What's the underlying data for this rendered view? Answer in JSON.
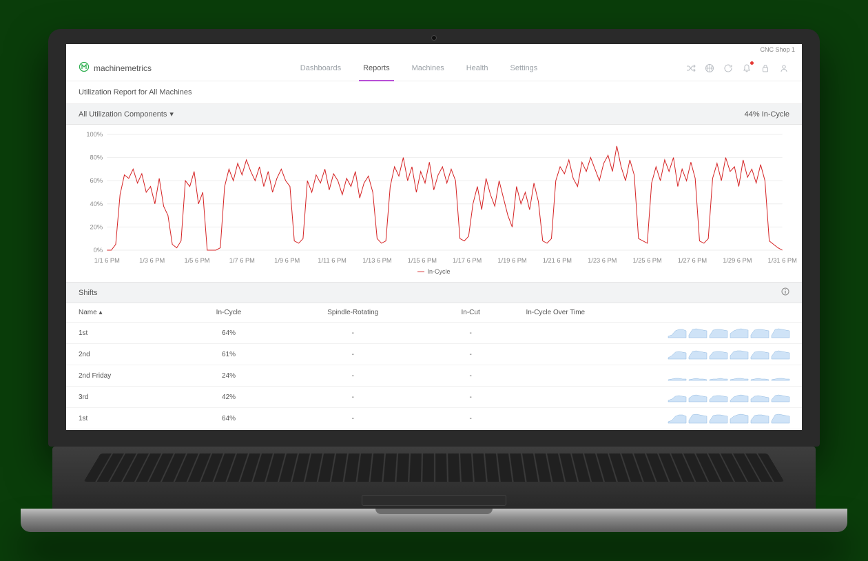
{
  "shop_label": "CNC Shop 1",
  "brand": {
    "name": "machinemetrics"
  },
  "nav": {
    "items": [
      "Dashboards",
      "Reports",
      "Machines",
      "Health",
      "Settings"
    ],
    "active_index": 1
  },
  "header_icons": [
    "shuffle-icon",
    "globe-icon",
    "refresh-icon",
    "bell-icon",
    "lock-icon",
    "user-icon"
  ],
  "bell_badge": true,
  "subhead": "Utilization Report for All Machines",
  "filter": {
    "label": "All Utilization Components",
    "summary": "44% In-Cycle"
  },
  "chart": {
    "type": "line",
    "series_name": "In-Cycle",
    "series_color": "#d62728",
    "grid_color": "#eeeeee",
    "background_color": "#ffffff",
    "label_color": "#888888",
    "label_fontsize": 9,
    "ylim": [
      0,
      100
    ],
    "yticks": [
      0,
      20,
      40,
      60,
      80,
      100
    ],
    "ytick_labels": [
      "0%",
      "20%",
      "40%",
      "60%",
      "80%",
      "100%"
    ],
    "xtick_labels": [
      "1/1 6 PM",
      "1/3 6 PM",
      "1/5 6 PM",
      "1/7 6 PM",
      "1/9 6 PM",
      "1/11 6 PM",
      "1/13 6 PM",
      "1/15 6 PM",
      "1/17 6 PM",
      "1/19 6 PM",
      "1/21 6 PM",
      "1/23 6 PM",
      "1/25 6 PM",
      "1/27 6 PM",
      "1/29 6 PM",
      "1/31 6 PM"
    ],
    "values": [
      0,
      0,
      5,
      48,
      65,
      62,
      70,
      58,
      66,
      50,
      55,
      40,
      62,
      38,
      30,
      5,
      2,
      8,
      60,
      55,
      68,
      40,
      50,
      0,
      0,
      0,
      2,
      55,
      70,
      60,
      75,
      65,
      78,
      68,
      60,
      72,
      55,
      68,
      50,
      62,
      70,
      60,
      55,
      8,
      6,
      10,
      60,
      50,
      65,
      58,
      70,
      52,
      66,
      60,
      48,
      62,
      55,
      68,
      45,
      58,
      64,
      50,
      10,
      6,
      8,
      55,
      72,
      64,
      80,
      60,
      72,
      50,
      68,
      58,
      76,
      52,
      65,
      72,
      58,
      70,
      60,
      10,
      8,
      12,
      40,
      55,
      35,
      62,
      48,
      38,
      60,
      45,
      30,
      20,
      55,
      40,
      50,
      35,
      58,
      42,
      8,
      6,
      10,
      60,
      72,
      66,
      78,
      62,
      55,
      76,
      68,
      80,
      70,
      60,
      75,
      82,
      68,
      90,
      72,
      60,
      78,
      65,
      10,
      8,
      6,
      58,
      72,
      60,
      78,
      68,
      80,
      55,
      70,
      60,
      76,
      62,
      8,
      6,
      10,
      62,
      75,
      60,
      80,
      68,
      72,
      55,
      78,
      63,
      70,
      58,
      74,
      60,
      8,
      5,
      2,
      0
    ]
  },
  "shifts": {
    "title": "Shifts",
    "columns": [
      "Name",
      "In-Cycle",
      "Spindle-Rotating",
      "In-Cut",
      "In-Cycle Over Time"
    ],
    "sort_col": 0,
    "sort_dir": "asc",
    "rows": [
      {
        "name": "1st",
        "in_cycle": "64%",
        "spindle": "-",
        "in_cut": "-",
        "spark": [
          [
            2,
            4,
            10,
            12,
            12,
            10
          ],
          [
            4,
            12,
            13,
            12,
            11,
            10
          ],
          [
            3,
            11,
            12,
            12,
            11,
            10
          ],
          [
            6,
            10,
            12,
            13,
            12,
            11
          ],
          [
            4,
            11,
            12,
            12,
            11,
            10
          ],
          [
            3,
            12,
            13,
            12,
            11,
            10
          ]
        ]
      },
      {
        "name": "2nd",
        "in_cycle": "61%",
        "spindle": "-",
        "in_cut": "-",
        "spark": [
          [
            2,
            5,
            10,
            11,
            10,
            9
          ],
          [
            3,
            11,
            12,
            11,
            10,
            9
          ],
          [
            4,
            10,
            11,
            11,
            10,
            9
          ],
          [
            5,
            11,
            12,
            12,
            11,
            10
          ],
          [
            3,
            10,
            11,
            11,
            10,
            9
          ],
          [
            4,
            11,
            12,
            11,
            10,
            9
          ]
        ]
      },
      {
        "name": "2nd Friday",
        "in_cycle": "24%",
        "spindle": "-",
        "in_cut": "-",
        "spark": [
          [
            1,
            2,
            3,
            3,
            2,
            2
          ],
          [
            1,
            2,
            3,
            2,
            2,
            1
          ],
          [
            1,
            2,
            2,
            3,
            2,
            2
          ],
          [
            1,
            2,
            3,
            3,
            2,
            2
          ],
          [
            1,
            2,
            3,
            2,
            2,
            1
          ],
          [
            1,
            2,
            3,
            3,
            2,
            2
          ]
        ]
      },
      {
        "name": "3rd",
        "in_cycle": "42%",
        "spindle": "-",
        "in_cut": "-",
        "spark": [
          [
            2,
            4,
            8,
            9,
            8,
            7
          ],
          [
            5,
            9,
            10,
            9,
            8,
            7
          ],
          [
            3,
            8,
            9,
            9,
            8,
            7
          ],
          [
            2,
            7,
            9,
            10,
            9,
            8
          ],
          [
            4,
            8,
            9,
            8,
            7,
            6
          ],
          [
            3,
            9,
            10,
            9,
            8,
            7
          ]
        ]
      },
      {
        "name": "1st",
        "in_cycle": "64%",
        "spindle": "-",
        "in_cut": "-",
        "spark": [
          [
            2,
            4,
            10,
            12,
            12,
            10
          ],
          [
            4,
            12,
            13,
            12,
            11,
            10
          ],
          [
            3,
            11,
            12,
            12,
            11,
            10
          ],
          [
            6,
            10,
            12,
            13,
            12,
            11
          ],
          [
            4,
            11,
            12,
            12,
            11,
            10
          ],
          [
            3,
            12,
            13,
            12,
            11,
            10
          ]
        ]
      }
    ]
  }
}
